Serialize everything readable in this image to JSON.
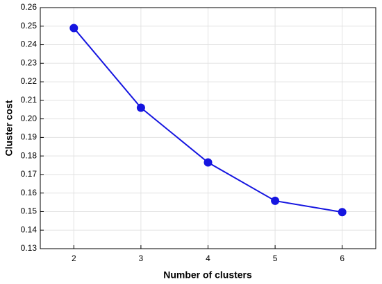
{
  "chart_data": {
    "type": "line",
    "x": [
      2,
      3,
      4,
      5,
      6
    ],
    "series": [
      {
        "color": "#1515e0",
        "values": [
          0.249,
          0.206,
          0.1765,
          0.1558,
          0.1497
        ]
      }
    ],
    "xlabel": "Number of clusters",
    "ylabel": "Cluster cost",
    "xlim": [
      1.5,
      6.5
    ],
    "xticks": [
      2,
      3,
      4,
      5,
      6
    ],
    "ylim": [
      0.13,
      0.26
    ],
    "yticks": [
      0.13,
      0.14,
      0.15,
      0.16,
      0.17,
      0.18,
      0.19,
      {
        "value": 0.2,
        "label": "0.20"
      },
      0.21,
      0.22,
      0.23,
      0.24,
      0.25,
      0.26
    ],
    "grid": true
  }
}
